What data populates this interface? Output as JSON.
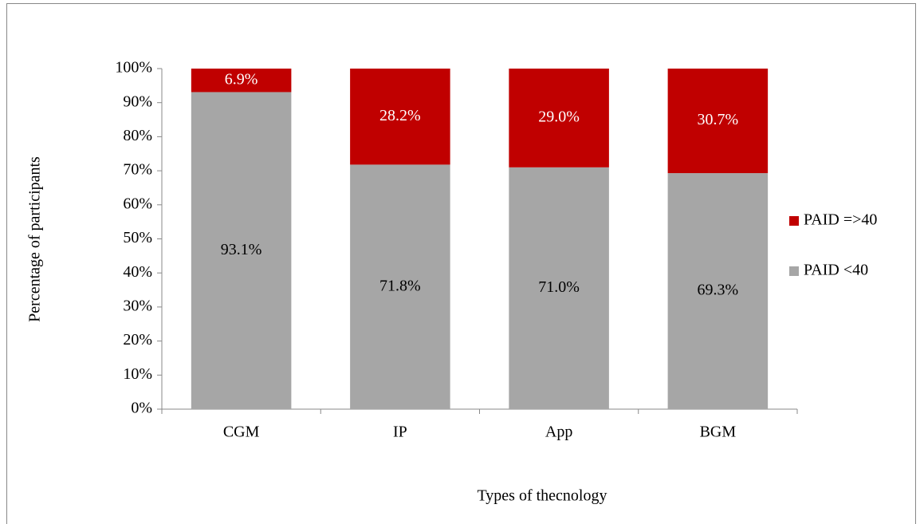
{
  "chart_data": {
    "type": "stacked_bar",
    "x_label": "Types of thecnology",
    "y_label": "Percentage of participants",
    "categories": [
      "CGM",
      "IP",
      "App",
      "BGM"
    ],
    "series": [
      {
        "name": "PAID <40",
        "color": "#a6a6a6",
        "values": [
          93.1,
          71.8,
          71.0,
          69.3
        ],
        "value_labels": [
          "93.1%",
          "71.8%",
          "71.0%",
          "69.3%"
        ]
      },
      {
        "name": "PAID =>40",
        "color": "#c00000",
        "values": [
          6.9,
          28.2,
          29.0,
          30.7
        ],
        "value_labels": [
          "6.9%",
          "28.2%",
          "29.0%",
          "30.7%"
        ]
      }
    ],
    "ylim": [
      0,
      100
    ],
    "yticks": [
      {
        "value": 0,
        "label": "0%"
      },
      {
        "value": 10,
        "label": "10%"
      },
      {
        "value": 20,
        "label": "20%"
      },
      {
        "value": 30,
        "label": "30%"
      },
      {
        "value": 40,
        "label": "40%"
      },
      {
        "value": 50,
        "label": "50%"
      },
      {
        "value": 60,
        "label": "60%"
      },
      {
        "value": 70,
        "label": "70%"
      },
      {
        "value": 80,
        "label": "80%"
      },
      {
        "value": 90,
        "label": "90%"
      },
      {
        "value": 100,
        "label": "100%"
      }
    ],
    "legend": "right"
  }
}
